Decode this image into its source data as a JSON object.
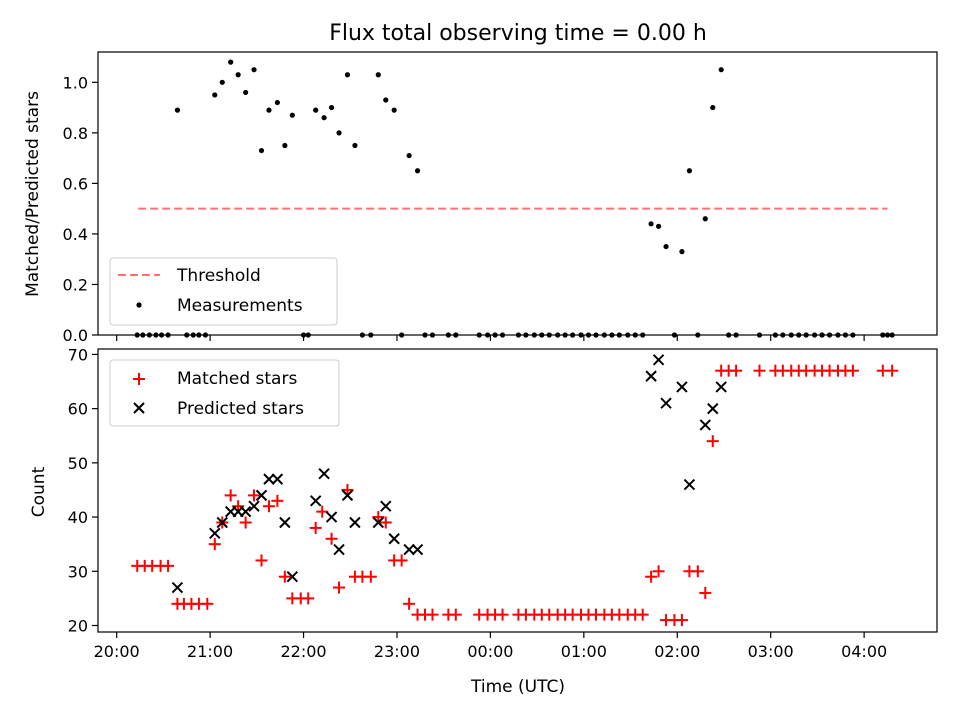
{
  "chart_data": [
    {
      "type": "scatter",
      "title": "Flux total observing time = 0.00 h",
      "ylabel": "Matched/Predicted stars",
      "xlabel": "",
      "xlim_hours": [
        19.8,
        28.78
      ],
      "ylim": [
        0,
        1.12
      ],
      "yticks": [
        0.0,
        0.2,
        0.4,
        0.6,
        0.8,
        1.0
      ],
      "ytick_labels": [
        "0.0",
        "0.2",
        "0.4",
        "0.6",
        "0.8",
        "1.0"
      ],
      "legend_position": "lower-left",
      "threshold": {
        "name": "Threshold",
        "y": 0.5,
        "x_start": 20.23,
        "x_end": 28.25,
        "color": "#ff7070",
        "style": "dashed"
      },
      "series": [
        {
          "name": "Measurements",
          "color": "#000000",
          "marker": "dot",
          "points": [
            [
              20.22,
              0
            ],
            [
              20.28,
              0
            ],
            [
              20.35,
              0
            ],
            [
              20.42,
              0
            ],
            [
              20.48,
              0
            ],
            [
              20.55,
              0
            ],
            [
              20.65,
              0.89
            ],
            [
              20.75,
              0
            ],
            [
              20.82,
              0
            ],
            [
              20.88,
              0
            ],
            [
              20.95,
              0
            ],
            [
              21.05,
              0.95
            ],
            [
              21.13,
              1.0
            ],
            [
              21.22,
              1.08
            ],
            [
              21.3,
              1.03
            ],
            [
              21.38,
              0.96
            ],
            [
              21.47,
              1.05
            ],
            [
              21.55,
              0.73
            ],
            [
              21.63,
              0.89
            ],
            [
              21.72,
              0.92
            ],
            [
              21.8,
              0.75
            ],
            [
              21.88,
              0.87
            ],
            [
              22.0,
              0
            ],
            [
              22.05,
              0
            ],
            [
              22.13,
              0.89
            ],
            [
              22.22,
              0.86
            ],
            [
              22.3,
              0.9
            ],
            [
              22.38,
              0.8
            ],
            [
              22.47,
              1.03
            ],
            [
              22.55,
              0.75
            ],
            [
              22.63,
              0
            ],
            [
              22.72,
              0
            ],
            [
              22.8,
              1.03
            ],
            [
              22.88,
              0.93
            ],
            [
              22.97,
              0.89
            ],
            [
              23.05,
              0
            ],
            [
              23.13,
              0.71
            ],
            [
              23.22,
              0.65
            ],
            [
              23.3,
              0
            ],
            [
              23.38,
              0
            ],
            [
              23.55,
              0
            ],
            [
              23.63,
              0
            ],
            [
              23.88,
              0
            ],
            [
              23.97,
              0
            ],
            [
              24.05,
              0
            ],
            [
              24.13,
              0
            ],
            [
              24.3,
              0
            ],
            [
              24.38,
              0
            ],
            [
              24.47,
              0
            ],
            [
              24.55,
              0
            ],
            [
              24.63,
              0
            ],
            [
              24.72,
              0
            ],
            [
              24.8,
              0
            ],
            [
              24.88,
              0
            ],
            [
              24.97,
              0
            ],
            [
              25.05,
              0
            ],
            [
              25.13,
              0
            ],
            [
              25.22,
              0
            ],
            [
              25.3,
              0
            ],
            [
              25.38,
              0
            ],
            [
              25.47,
              0
            ],
            [
              25.55,
              0
            ],
            [
              25.63,
              0
            ],
            [
              25.72,
              0.44
            ],
            [
              25.8,
              0.43
            ],
            [
              25.88,
              0.35
            ],
            [
              25.97,
              0
            ],
            [
              26.05,
              0.33
            ],
            [
              26.13,
              0.65
            ],
            [
              26.22,
              0
            ],
            [
              26.3,
              0.46
            ],
            [
              26.38,
              0.9
            ],
            [
              26.47,
              1.05
            ],
            [
              26.55,
              0
            ],
            [
              26.63,
              0
            ],
            [
              26.88,
              0
            ],
            [
              27.05,
              0
            ],
            [
              27.13,
              0
            ],
            [
              27.22,
              0
            ],
            [
              27.3,
              0
            ],
            [
              27.38,
              0
            ],
            [
              27.47,
              0
            ],
            [
              27.55,
              0
            ],
            [
              27.63,
              0
            ],
            [
              27.72,
              0
            ],
            [
              27.8,
              0
            ],
            [
              27.88,
              0
            ],
            [
              28.2,
              0
            ],
            [
              28.25,
              0
            ],
            [
              28.3,
              0
            ]
          ]
        }
      ]
    },
    {
      "type": "scatter",
      "title": "",
      "ylabel": "Count",
      "xlabel": "Time (UTC)",
      "xlim_hours": [
        19.8,
        28.78
      ],
      "ylim": [
        18.8,
        71
      ],
      "yticks": [
        20,
        30,
        40,
        50,
        60,
        70
      ],
      "ytick_labels": [
        "20",
        "30",
        "40",
        "50",
        "60",
        "70"
      ],
      "xticks_hours": [
        20,
        21,
        22,
        23,
        24,
        25,
        26,
        27,
        28
      ],
      "xtick_labels": [
        "20:00",
        "21:00",
        "22:00",
        "23:00",
        "00:00",
        "01:00",
        "02:00",
        "03:00",
        "04:00"
      ],
      "legend_position": "upper-left",
      "series": [
        {
          "name": "Matched stars",
          "color": "#ff0000",
          "marker": "plus",
          "points": [
            [
              20.22,
              31
            ],
            [
              20.3,
              31
            ],
            [
              20.38,
              31
            ],
            [
              20.47,
              31
            ],
            [
              20.55,
              31
            ],
            [
              20.65,
              24
            ],
            [
              20.72,
              24
            ],
            [
              20.8,
              24
            ],
            [
              20.88,
              24
            ],
            [
              20.97,
              24
            ],
            [
              21.05,
              35
            ],
            [
              21.13,
              39
            ],
            [
              21.22,
              44
            ],
            [
              21.3,
              42
            ],
            [
              21.38,
              39
            ],
            [
              21.47,
              44
            ],
            [
              21.55,
              32
            ],
            [
              21.63,
              42
            ],
            [
              21.72,
              43
            ],
            [
              21.8,
              29
            ],
            [
              21.88,
              25
            ],
            [
              21.97,
              25
            ],
            [
              22.05,
              25
            ],
            [
              22.13,
              38
            ],
            [
              22.2,
              41
            ],
            [
              22.3,
              36
            ],
            [
              22.38,
              27
            ],
            [
              22.47,
              45
            ],
            [
              22.55,
              29
            ],
            [
              22.63,
              29
            ],
            [
              22.72,
              29
            ],
            [
              22.8,
              40
            ],
            [
              22.88,
              39
            ],
            [
              22.97,
              32
            ],
            [
              23.05,
              32
            ],
            [
              23.13,
              24
            ],
            [
              23.22,
              22
            ],
            [
              23.3,
              22
            ],
            [
              23.38,
              22
            ],
            [
              23.55,
              22
            ],
            [
              23.63,
              22
            ],
            [
              23.88,
              22
            ],
            [
              23.97,
              22
            ],
            [
              24.05,
              22
            ],
            [
              24.13,
              22
            ],
            [
              24.3,
              22
            ],
            [
              24.38,
              22
            ],
            [
              24.47,
              22
            ],
            [
              24.55,
              22
            ],
            [
              24.63,
              22
            ],
            [
              24.72,
              22
            ],
            [
              24.8,
              22
            ],
            [
              24.88,
              22
            ],
            [
              24.97,
              22
            ],
            [
              25.05,
              22
            ],
            [
              25.13,
              22
            ],
            [
              25.22,
              22
            ],
            [
              25.3,
              22
            ],
            [
              25.38,
              22
            ],
            [
              25.47,
              22
            ],
            [
              25.55,
              22
            ],
            [
              25.63,
              22
            ],
            [
              25.72,
              29
            ],
            [
              25.8,
              30
            ],
            [
              25.88,
              21
            ],
            [
              25.97,
              21
            ],
            [
              26.05,
              21
            ],
            [
              26.13,
              30
            ],
            [
              26.22,
              30
            ],
            [
              26.3,
              26
            ],
            [
              26.38,
              54
            ],
            [
              26.47,
              67
            ],
            [
              26.55,
              67
            ],
            [
              26.63,
              67
            ],
            [
              26.88,
              67
            ],
            [
              27.05,
              67
            ],
            [
              27.13,
              67
            ],
            [
              27.22,
              67
            ],
            [
              27.3,
              67
            ],
            [
              27.38,
              67
            ],
            [
              27.47,
              67
            ],
            [
              27.55,
              67
            ],
            [
              27.63,
              67
            ],
            [
              27.72,
              67
            ],
            [
              27.8,
              67
            ],
            [
              27.88,
              67
            ],
            [
              28.2,
              67
            ],
            [
              28.3,
              67
            ]
          ]
        },
        {
          "name": "Predicted stars",
          "color": "#000000",
          "marker": "x",
          "points": [
            [
              20.65,
              27
            ],
            [
              21.05,
              37
            ],
            [
              21.13,
              39
            ],
            [
              21.22,
              41
            ],
            [
              21.3,
              41
            ],
            [
              21.38,
              41
            ],
            [
              21.47,
              42
            ],
            [
              21.55,
              44
            ],
            [
              21.63,
              47
            ],
            [
              21.72,
              47
            ],
            [
              21.8,
              39
            ],
            [
              21.88,
              29
            ],
            [
              22.13,
              43
            ],
            [
              22.22,
              48
            ],
            [
              22.3,
              40
            ],
            [
              22.38,
              34
            ],
            [
              22.47,
              44
            ],
            [
              22.55,
              39
            ],
            [
              22.8,
              39
            ],
            [
              22.88,
              42
            ],
            [
              22.97,
              36
            ],
            [
              23.13,
              34
            ],
            [
              23.22,
              34
            ],
            [
              25.72,
              66
            ],
            [
              25.8,
              69
            ],
            [
              25.88,
              61
            ],
            [
              26.05,
              64
            ],
            [
              26.13,
              46
            ],
            [
              26.3,
              57
            ],
            [
              26.38,
              60
            ],
            [
              26.47,
              64
            ]
          ]
        }
      ]
    }
  ]
}
